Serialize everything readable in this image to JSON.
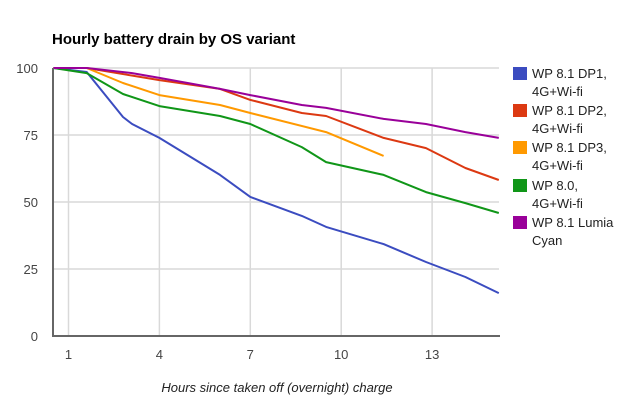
{
  "chart_data": {
    "type": "line",
    "title": "Hourly battery drain by OS variant",
    "xlabel": "Hours since taken off (overnight) charge",
    "ylabel": "",
    "xlim": [
      0.5,
      15.2
    ],
    "ylim": [
      0,
      100
    ],
    "x_ticks": [
      "1",
      "4",
      "7",
      "10",
      "13"
    ],
    "x_tick_values": [
      1,
      4,
      7,
      10,
      13
    ],
    "y_ticks": [
      "0",
      "25",
      "50",
      "75",
      "100"
    ],
    "y_tick_values": [
      0,
      25,
      50,
      75,
      100
    ],
    "grid": true,
    "legend_position": "right",
    "series": [
      {
        "name_lines": [
          "WP 8.1 DP1,",
          "4G+Wi-fi"
        ],
        "name": "WP 8.1 DP1, 4G+Wi-fi",
        "color": "#3b4cc0",
        "x": [
          0.5,
          1.6,
          2.8,
          3.1,
          4.0,
          6.0,
          7.0,
          8.7,
          9.5,
          11.4,
          12.8,
          14.1,
          15.2
        ],
        "values": [
          100,
          98.5,
          81.7,
          79.1,
          73.9,
          60.1,
          51.9,
          44.8,
          40.7,
          34.3,
          27.6,
          22.0,
          16.0
        ]
      },
      {
        "name_lines": [
          "WP 8.1 DP2,",
          "4G+Wi-fi"
        ],
        "name": "WP 8.1 DP2, 4G+Wi-fi",
        "color": "#dc3912",
        "x": [
          0.5,
          1.6,
          4.0,
          6.0,
          7.0,
          8.7,
          9.5,
          11.4,
          12.8,
          14.1,
          15.2
        ],
        "values": [
          100,
          100,
          95.5,
          92.2,
          88.1,
          83.2,
          82.1,
          73.9,
          70.1,
          62.7,
          58.2
        ]
      },
      {
        "name_lines": [
          "WP 8.1 DP3,",
          "4G+Wi-fi"
        ],
        "name": "WP 8.1 DP3, 4G+Wi-fi",
        "color": "#ff9900",
        "x": [
          0.5,
          1.6,
          2.8,
          4.0,
          6.0,
          7.0,
          9.5,
          11.4
        ],
        "values": [
          100,
          100,
          94.4,
          89.9,
          86.2,
          83.2,
          76.1,
          67.2
        ]
      },
      {
        "name_lines": [
          "WP 8.0,",
          "4G+Wi-fi"
        ],
        "name": "WP 8.0, 4G+Wi-fi",
        "color": "#109618",
        "x": [
          0.5,
          1.6,
          2.8,
          4.0,
          6.0,
          7.0,
          8.7,
          9.5,
          11.4,
          12.8,
          14.1,
          15.2
        ],
        "values": [
          100,
          98.1,
          90.3,
          85.8,
          82.1,
          79.1,
          70.5,
          64.9,
          60.1,
          53.7,
          49.6,
          45.9
        ]
      },
      {
        "name_lines": [
          "WP 8.1 Lumia",
          "Cyan"
        ],
        "name": "WP 8.1 Lumia Cyan",
        "color": "#990099",
        "x": [
          0.5,
          1.6,
          3.1,
          4.0,
          6.0,
          7.0,
          8.7,
          9.5,
          11.4,
          12.8,
          14.1,
          15.2
        ],
        "values": [
          100,
          100,
          98.1,
          96.3,
          92.2,
          89.9,
          86.2,
          85.1,
          81.0,
          79.1,
          76.1,
          73.9
        ]
      }
    ]
  }
}
